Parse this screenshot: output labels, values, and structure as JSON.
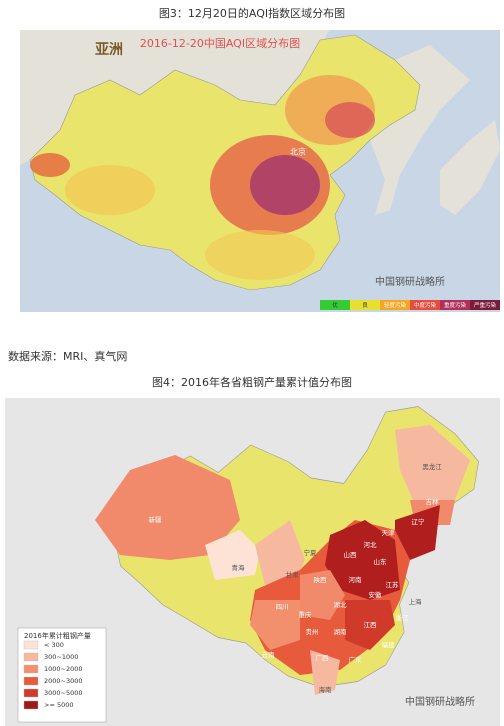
{
  "figure1": {
    "caption": "图3：12月20日的AQI指数区域分布图",
    "map_title": "2016-12-20中国AQI区域分布图",
    "region": "亚洲",
    "city": "北京",
    "legend": [
      "优",
      "良",
      "轻度污染",
      "中度污染",
      "重度污染",
      "严重污染"
    ],
    "watermark": "中国钢研战略所"
  },
  "source": "数据来源：MRI、真气网",
  "figure2": {
    "caption": "图4：2016年各省粗钢产量累计值分布图",
    "provinces": [
      "新疆",
      "青海",
      "甘肃",
      "宁夏",
      "陕西",
      "山西",
      "河北",
      "天津",
      "辽宁",
      "吉林",
      "黑龙江",
      "山东",
      "河南",
      "江苏",
      "安徽",
      "上海",
      "湖北",
      "重庆",
      "四川",
      "贵州",
      "湖南",
      "江西",
      "浙江",
      "福建",
      "云南",
      "广西",
      "广东",
      "海南"
    ],
    "legend_title": "2016年累计粗钢产量",
    "legend": [
      "< 300",
      "300~1000",
      "1000~2000",
      "2000~3000",
      "3000~5000",
      ">= 5000"
    ],
    "watermark": "中国钢研战略所"
  }
}
